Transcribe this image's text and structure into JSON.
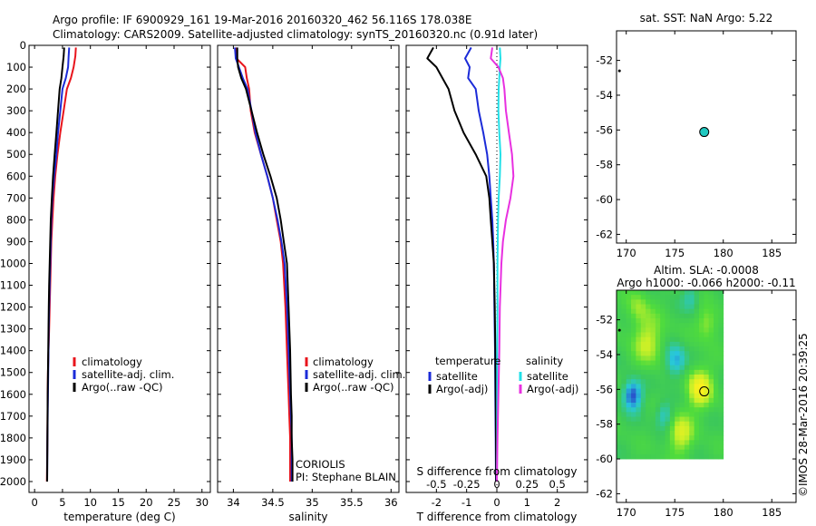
{
  "header": {
    "line1": "Argo profile: IF 6900929_161 19-Mar-2016 20160320_462 56.116S 178.038E",
    "line2": "Climatology: CARS2009. Satellite-adjusted climatology: synTS_20160320.nc (0.91d later)"
  },
  "colors": {
    "climatology": "#e8141c",
    "satellite": "#1b2bd8",
    "argo": "#000000",
    "sal_satellite": "#22e0e8",
    "sal_argo": "#e830e0",
    "marker": "#20c8c0"
  },
  "depth_axis": {
    "ylim": [
      0,
      2050
    ],
    "ticks": [
      0,
      100,
      200,
      300,
      400,
      500,
      600,
      700,
      800,
      900,
      1000,
      1100,
      1200,
      1300,
      1400,
      1500,
      1600,
      1700,
      1800,
      1900,
      2000
    ]
  },
  "chart_data": [
    {
      "id": "temperature",
      "type": "line",
      "xlabel": "temperature (deg C)",
      "xlim": [
        -1,
        31.5
      ],
      "xticks": [
        0,
        5,
        10,
        15,
        20,
        25,
        30
      ],
      "xtick_labels": [
        "0",
        "5",
        "10",
        "15",
        "20",
        "25",
        "30"
      ],
      "legend": [
        "climatology",
        "satellite-adj. clim.",
        "Argo(..raw -QC)"
      ],
      "series": [
        {
          "name": "climatology",
          "color_key": "climatology",
          "x": [
            7.4,
            7.3,
            7.0,
            6.5,
            5.8,
            5.2,
            4.6,
            4.1,
            3.7,
            3.4,
            3.2,
            3.0,
            2.9,
            2.8,
            2.7,
            2.6,
            2.5,
            2.4,
            2.35,
            2.3,
            2.2
          ],
          "y": [
            10,
            50,
            100,
            150,
            200,
            300,
            400,
            500,
            600,
            700,
            800,
            900,
            1000,
            1100,
            1200,
            1300,
            1400,
            1500,
            1600,
            1800,
            2000
          ]
        },
        {
          "name": "satellite-adj. clim.",
          "color_key": "satellite",
          "x": [
            6.2,
            6.1,
            6.0,
            5.6,
            5.0,
            4.6,
            4.2,
            3.9,
            3.5,
            3.2,
            3.0,
            2.9,
            2.8,
            2.7,
            2.6,
            2.55,
            2.5,
            2.45,
            2.4,
            2.3,
            2.25
          ],
          "y": [
            10,
            50,
            100,
            150,
            200,
            300,
            400,
            500,
            600,
            700,
            800,
            900,
            1000,
            1100,
            1200,
            1300,
            1400,
            1500,
            1600,
            1800,
            2000
          ]
        },
        {
          "name": "Argo(..raw -QC)",
          "color_key": "argo",
          "x": [
            5.3,
            5.2,
            5.0,
            4.8,
            4.5,
            4.2,
            3.9,
            3.6,
            3.3,
            3.1,
            2.9,
            2.8,
            2.7,
            2.6,
            2.55,
            2.5,
            2.45,
            2.4,
            2.35,
            2.3,
            2.25
          ],
          "y": [
            10,
            50,
            100,
            150,
            200,
            300,
            400,
            500,
            600,
            700,
            800,
            900,
            1000,
            1100,
            1200,
            1300,
            1400,
            1500,
            1600,
            1800,
            2000
          ]
        }
      ]
    },
    {
      "id": "salinity",
      "type": "line",
      "xlabel": "salinity",
      "xlim": [
        33.8,
        36.1
      ],
      "xticks": [
        34,
        34.5,
        35,
        35.5,
        36
      ],
      "xtick_labels": [
        "34",
        "34.5",
        "35",
        "35.5",
        "36"
      ],
      "legend": [
        "climatology",
        "satellite-adj. clim.",
        "Argo(..raw -QC)"
      ],
      "annotations": [
        "CORIOLIS",
        "PI: Stephane BLAIN"
      ],
      "series": [
        {
          "name": "climatology",
          "color_key": "climatology",
          "x": [
            34.03,
            34.04,
            34.15,
            34.17,
            34.2,
            34.22,
            34.27,
            34.35,
            34.43,
            34.5,
            34.55,
            34.6,
            34.63,
            34.66,
            34.68,
            34.7,
            34.71,
            34.72,
            34.72,
            34.72
          ],
          "y": [
            10,
            60,
            100,
            150,
            200,
            300,
            400,
            500,
            600,
            700,
            800,
            900,
            1000,
            1200,
            1400,
            1600,
            1700,
            1800,
            1900,
            2000
          ]
        },
        {
          "name": "satellite-adj. clim.",
          "color_key": "satellite",
          "x": [
            34.02,
            34.03,
            34.07,
            34.12,
            34.18,
            34.23,
            34.28,
            34.35,
            34.43,
            34.5,
            34.56,
            34.61,
            34.65,
            34.68,
            34.7,
            34.72,
            34.73,
            34.74,
            34.74,
            34.74
          ],
          "y": [
            10,
            60,
            100,
            150,
            200,
            300,
            400,
            500,
            600,
            700,
            800,
            900,
            1000,
            1200,
            1400,
            1600,
            1700,
            1800,
            1900,
            2000
          ]
        },
        {
          "name": "Argo(..raw -QC)",
          "color_key": "argo",
          "x": [
            34.05,
            34.05,
            34.06,
            34.1,
            34.16,
            34.23,
            34.3,
            34.38,
            34.47,
            34.55,
            34.6,
            34.64,
            34.68,
            34.7,
            34.72,
            34.73,
            34.74,
            34.74,
            34.75,
            34.75
          ],
          "y": [
            10,
            60,
            100,
            150,
            200,
            300,
            400,
            500,
            600,
            700,
            800,
            900,
            1000,
            1200,
            1400,
            1600,
            1700,
            1800,
            1900,
            2000
          ]
        }
      ]
    },
    {
      "id": "difference",
      "type": "line",
      "xlabel": "T difference from climatology",
      "xlabel_top": "S difference from climatology",
      "xlim": [
        -3,
        3
      ],
      "xticks": [
        -2,
        -1,
        0,
        1,
        2
      ],
      "xtick_labels": [
        "-2",
        "-1",
        "0",
        "1",
        "2"
      ],
      "xticks_top": [
        -2,
        -1,
        0,
        1,
        2
      ],
      "xtick_labels_top": [
        "-0.5",
        "-0.25",
        "0",
        "0.25",
        "0.5"
      ],
      "legend_groups": [
        {
          "title": "temperature",
          "entries": [
            "satellite",
            "Argo(-adj)"
          ]
        },
        {
          "title": "salinity",
          "entries": [
            "satellite",
            "Argo(-adj)"
          ]
        }
      ],
      "series": [
        {
          "name": "satellite",
          "color_key": "satellite",
          "x": [
            -0.85,
            -1.05,
            -0.9,
            -0.95,
            -0.7,
            -0.6,
            -0.45,
            -0.32,
            -0.25,
            -0.2,
            -0.15,
            -0.12,
            -0.1,
            -0.08,
            -0.06,
            -0.05,
            -0.04,
            -0.03
          ],
          "y": [
            10,
            60,
            100,
            150,
            200,
            300,
            400,
            500,
            600,
            700,
            800,
            900,
            1000,
            1200,
            1400,
            1600,
            1800,
            2000
          ]
        },
        {
          "name": "Argo(-adj)",
          "color_key": "argo",
          "x": [
            -2.1,
            -2.3,
            -2.0,
            -1.8,
            -1.6,
            -1.4,
            -1.1,
            -0.7,
            -0.35,
            -0.25,
            -0.2,
            -0.15,
            -0.1,
            -0.07,
            -0.05,
            -0.04,
            -0.03,
            -0.02
          ],
          "y": [
            10,
            60,
            100,
            150,
            200,
            300,
            400,
            500,
            600,
            700,
            800,
            900,
            1000,
            1200,
            1400,
            1600,
            1800,
            2000
          ]
        },
        {
          "name": "satellite",
          "color_key": "sal_satellite",
          "x": [
            0.1,
            0.12,
            0.1,
            0.08,
            0.06,
            0.05,
            0.08,
            0.12,
            0.1,
            0.06,
            0.04,
            0.03,
            0.02,
            0.02,
            0.01,
            0.01,
            0.01,
            0.0
          ],
          "y": [
            10,
            60,
            100,
            150,
            200,
            300,
            400,
            500,
            600,
            700,
            800,
            900,
            1000,
            1200,
            1400,
            1600,
            1800,
            2000
          ]
        },
        {
          "name": "Argo(-adj)",
          "color_key": "sal_argo",
          "x": [
            -0.15,
            -0.2,
            0.05,
            0.2,
            0.25,
            0.3,
            0.4,
            0.5,
            0.55,
            0.45,
            0.3,
            0.2,
            0.15,
            0.1,
            0.08,
            0.05,
            0.02,
            0.0
          ],
          "y": [
            10,
            60,
            100,
            150,
            200,
            300,
            400,
            500,
            600,
            700,
            800,
            900,
            1000,
            1200,
            1400,
            1600,
            1800,
            2000
          ]
        }
      ]
    },
    {
      "id": "sst_map",
      "type": "scatter",
      "title": "sat. SST: NaN Argo: 5.22",
      "xlim": [
        169,
        187.5
      ],
      "ylim": [
        -62.5,
        -50.3
      ],
      "xticks": [
        170,
        175,
        180,
        185
      ],
      "yticks": [
        -52,
        -54,
        -56,
        -58,
        -60,
        -62
      ],
      "points": [
        {
          "lon": 178.038,
          "lat": -56.116,
          "kind": "float"
        },
        {
          "lon": 169.3,
          "lat": -52.6,
          "kind": "dot"
        }
      ]
    },
    {
      "id": "sla_map",
      "type": "heatmap",
      "title_line1": "Altim. SLA: -0.0008",
      "title_line2": "Argo h1000: -0.066 h2000: -0.11",
      "xlim": [
        169,
        187.5
      ],
      "ylim": [
        -62.5,
        -50.3
      ],
      "xticks": [
        170,
        175,
        180,
        185
      ],
      "yticks": [
        -52,
        -54,
        -56,
        -58,
        -60,
        -62
      ],
      "grid_lon": [
        169,
        180
      ],
      "grid_lat": [
        -60,
        -50.3
      ],
      "points": [
        {
          "lon": 178.038,
          "lat": -56.116,
          "kind": "float"
        },
        {
          "lon": 169.3,
          "lat": -52.6,
          "kind": "dot"
        }
      ]
    }
  ],
  "credit": "©IMOS 28-Mar-2016 20:39:25"
}
